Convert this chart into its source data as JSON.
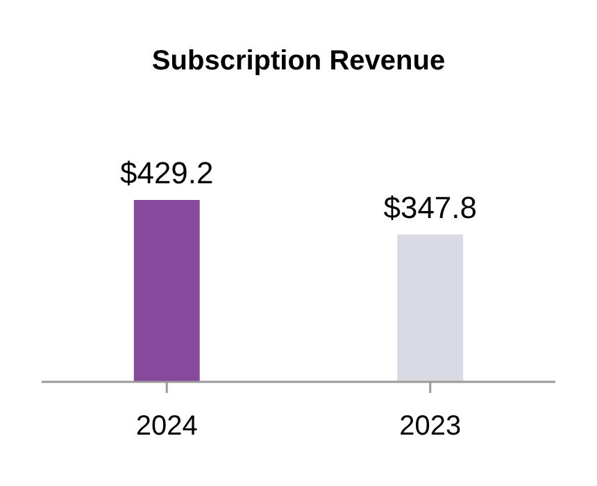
{
  "chart_data": {
    "type": "bar",
    "title": "Subscription Revenue",
    "categories": [
      "2024",
      "2023"
    ],
    "values": [
      429.2,
      347.8
    ],
    "colors": [
      "#87499b",
      "#d9dae3"
    ],
    "value_labels": [
      "$429.2",
      "$347.8"
    ]
  }
}
